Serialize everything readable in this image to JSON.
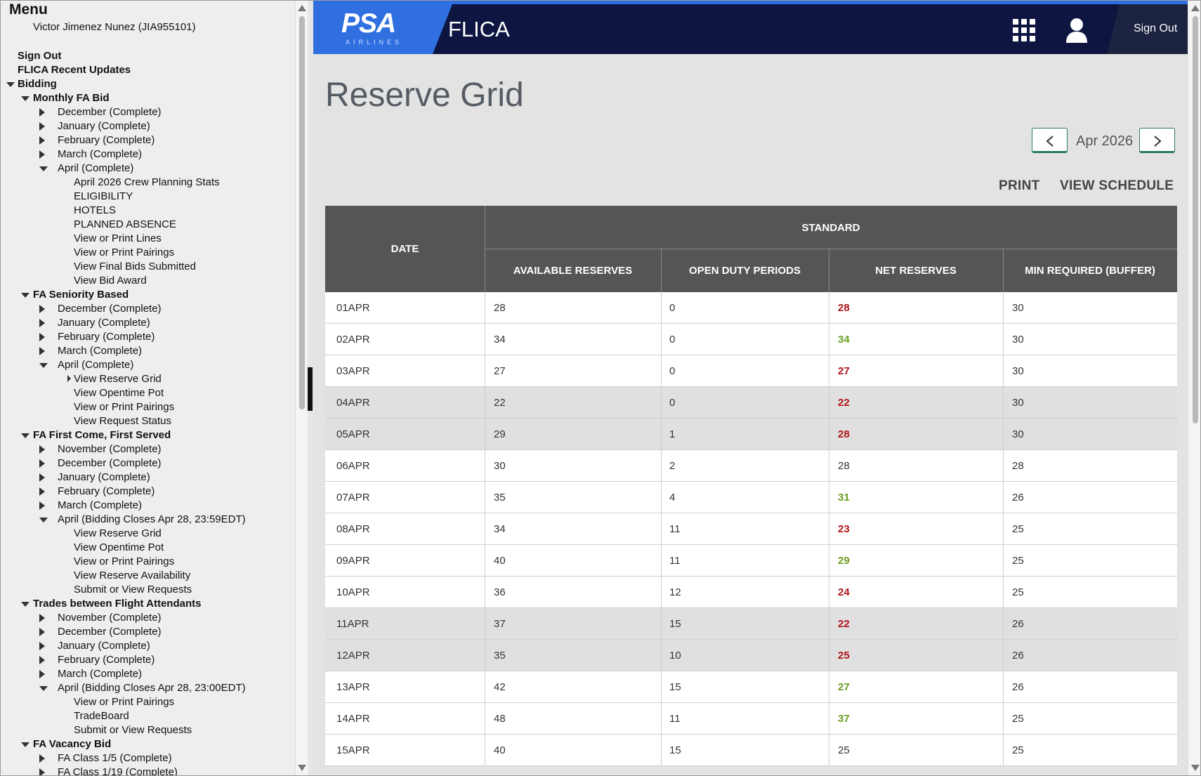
{
  "menu": {
    "title": "Menu",
    "user": "Victor Jimenez Nunez (JIA955101)",
    "items": [
      {
        "label": "Sign Out",
        "level": 0,
        "bold": true,
        "arrow": "none"
      },
      {
        "label": "FLICA Recent Updates",
        "level": 0,
        "bold": true,
        "arrow": "none"
      },
      {
        "label": "Bidding",
        "level": 0,
        "bold": true,
        "arrow": "down"
      },
      {
        "label": "Monthly FA Bid",
        "level": 1,
        "bold": true,
        "arrow": "down"
      },
      {
        "label": "December (Complete)",
        "level": 2,
        "bold": false,
        "arrow": "right"
      },
      {
        "label": "January (Complete)",
        "level": 2,
        "bold": false,
        "arrow": "right"
      },
      {
        "label": "February (Complete)",
        "level": 2,
        "bold": false,
        "arrow": "right"
      },
      {
        "label": "March (Complete)",
        "level": 2,
        "bold": false,
        "arrow": "right"
      },
      {
        "label": "April (Complete)",
        "level": 2,
        "bold": false,
        "arrow": "down"
      },
      {
        "label": "April 2026 Crew Planning Stats",
        "level": 3,
        "bold": false,
        "arrow": "none"
      },
      {
        "label": "ELIGIBILITY",
        "level": 3,
        "bold": false,
        "arrow": "none"
      },
      {
        "label": "HOTELS",
        "level": 3,
        "bold": false,
        "arrow": "none"
      },
      {
        "label": "PLANNED ABSENCE",
        "level": 3,
        "bold": false,
        "arrow": "none"
      },
      {
        "label": "View or Print Lines",
        "level": 3,
        "bold": false,
        "arrow": "none"
      },
      {
        "label": "View or Print Pairings",
        "level": 3,
        "bold": false,
        "arrow": "none"
      },
      {
        "label": "View Final Bids Submitted",
        "level": 3,
        "bold": false,
        "arrow": "none"
      },
      {
        "label": "View Bid Award",
        "level": 3,
        "bold": false,
        "arrow": "none"
      },
      {
        "label": "FA Seniority Based",
        "level": 1,
        "bold": true,
        "arrow": "down"
      },
      {
        "label": "December (Complete)",
        "level": 2,
        "bold": false,
        "arrow": "right"
      },
      {
        "label": "January (Complete)",
        "level": 2,
        "bold": false,
        "arrow": "right"
      },
      {
        "label": "February (Complete)",
        "level": 2,
        "bold": false,
        "arrow": "right"
      },
      {
        "label": "March (Complete)",
        "level": 2,
        "bold": false,
        "arrow": "right"
      },
      {
        "label": "April (Complete)",
        "level": 2,
        "bold": false,
        "arrow": "down"
      },
      {
        "label": "View Reserve Grid",
        "level": 3,
        "bold": false,
        "arrow": "small"
      },
      {
        "label": "View Opentime Pot",
        "level": 3,
        "bold": false,
        "arrow": "none"
      },
      {
        "label": "View or Print Pairings",
        "level": 3,
        "bold": false,
        "arrow": "none"
      },
      {
        "label": "View Request Status",
        "level": 3,
        "bold": false,
        "arrow": "none"
      },
      {
        "label": "FA First Come, First Served",
        "level": 1,
        "bold": true,
        "arrow": "down"
      },
      {
        "label": "November (Complete)",
        "level": 2,
        "bold": false,
        "arrow": "right"
      },
      {
        "label": "December (Complete)",
        "level": 2,
        "bold": false,
        "arrow": "right"
      },
      {
        "label": "January (Complete)",
        "level": 2,
        "bold": false,
        "arrow": "right"
      },
      {
        "label": "February (Complete)",
        "level": 2,
        "bold": false,
        "arrow": "right"
      },
      {
        "label": "March (Complete)",
        "level": 2,
        "bold": false,
        "arrow": "right"
      },
      {
        "label": "April (Bidding Closes Apr 28, 23:59EDT)",
        "level": 2,
        "bold": false,
        "arrow": "down"
      },
      {
        "label": "View Reserve Grid",
        "level": 3,
        "bold": false,
        "arrow": "none"
      },
      {
        "label": "View Opentime Pot",
        "level": 3,
        "bold": false,
        "arrow": "none"
      },
      {
        "label": "View or Print Pairings",
        "level": 3,
        "bold": false,
        "arrow": "none"
      },
      {
        "label": "View Reserve Availability",
        "level": 3,
        "bold": false,
        "arrow": "none"
      },
      {
        "label": "Submit or View Requests",
        "level": 3,
        "bold": false,
        "arrow": "none"
      },
      {
        "label": "Trades between Flight Attendants",
        "level": 1,
        "bold": true,
        "arrow": "down"
      },
      {
        "label": "November (Complete)",
        "level": 2,
        "bold": false,
        "arrow": "right"
      },
      {
        "label": "December (Complete)",
        "level": 2,
        "bold": false,
        "arrow": "right"
      },
      {
        "label": "January (Complete)",
        "level": 2,
        "bold": false,
        "arrow": "right"
      },
      {
        "label": "February (Complete)",
        "level": 2,
        "bold": false,
        "arrow": "right"
      },
      {
        "label": "March (Complete)",
        "level": 2,
        "bold": false,
        "arrow": "right"
      },
      {
        "label": "April (Bidding Closes Apr 28, 23:00EDT)",
        "level": 2,
        "bold": false,
        "arrow": "down"
      },
      {
        "label": "View or Print Pairings",
        "level": 3,
        "bold": false,
        "arrow": "none"
      },
      {
        "label": "TradeBoard",
        "level": 3,
        "bold": false,
        "arrow": "none"
      },
      {
        "label": "Submit or View Requests",
        "level": 3,
        "bold": false,
        "arrow": "none"
      },
      {
        "label": "FA Vacancy Bid",
        "level": 1,
        "bold": true,
        "arrow": "down"
      },
      {
        "label": "FA Class 1/5 (Complete)",
        "level": 2,
        "bold": false,
        "arrow": "right"
      },
      {
        "label": "FA Class 1/19 (Complete)",
        "level": 2,
        "bold": false,
        "arrow": "right"
      }
    ]
  },
  "header": {
    "logo_text": "PSA",
    "logo_sub": "AIRLINES",
    "app_title": "FLICA",
    "sign_out": "Sign Out",
    "apps_icon": "grid-icon",
    "user_icon": "user-icon"
  },
  "page": {
    "title": "Reserve Grid",
    "month": "Apr 2026",
    "print_label": "PRINT",
    "schedule_label": "VIEW SCHEDULE"
  },
  "colors": {
    "red": "#b01419",
    "green": "#6a9e1f",
    "header_bg": "#0d1540",
    "accent": "#2f6fe0"
  },
  "table": {
    "group_header": "STANDARD",
    "columns": [
      "DATE",
      "AVAILABLE RESERVES",
      "OPEN DUTY PERIODS",
      "NET RESERVES",
      "MIN REQUIRED (BUFFER)"
    ],
    "rows": [
      {
        "date": "01APR",
        "available": "28",
        "open": "0",
        "net": "28",
        "net_status": "red",
        "min": "30",
        "shade": "white"
      },
      {
        "date": "02APR",
        "available": "34",
        "open": "0",
        "net": "34",
        "net_status": "green",
        "min": "30",
        "shade": "white"
      },
      {
        "date": "03APR",
        "available": "27",
        "open": "0",
        "net": "27",
        "net_status": "red",
        "min": "30",
        "shade": "white"
      },
      {
        "date": "04APR",
        "available": "22",
        "open": "0",
        "net": "22",
        "net_status": "red",
        "min": "30",
        "shade": "grey"
      },
      {
        "date": "05APR",
        "available": "29",
        "open": "1",
        "net": "28",
        "net_status": "red",
        "min": "30",
        "shade": "grey"
      },
      {
        "date": "06APR",
        "available": "30",
        "open": "2",
        "net": "28",
        "net_status": "plain",
        "min": "28",
        "shade": "white"
      },
      {
        "date": "07APR",
        "available": "35",
        "open": "4",
        "net": "31",
        "net_status": "green",
        "min": "26",
        "shade": "white"
      },
      {
        "date": "08APR",
        "available": "34",
        "open": "11",
        "net": "23",
        "net_status": "red",
        "min": "25",
        "shade": "white"
      },
      {
        "date": "09APR",
        "available": "40",
        "open": "11",
        "net": "29",
        "net_status": "green",
        "min": "25",
        "shade": "white"
      },
      {
        "date": "10APR",
        "available": "36",
        "open": "12",
        "net": "24",
        "net_status": "red",
        "min": "25",
        "shade": "white"
      },
      {
        "date": "11APR",
        "available": "37",
        "open": "15",
        "net": "22",
        "net_status": "red",
        "min": "26",
        "shade": "grey"
      },
      {
        "date": "12APR",
        "available": "35",
        "open": "10",
        "net": "25",
        "net_status": "red",
        "min": "26",
        "shade": "grey"
      },
      {
        "date": "13APR",
        "available": "42",
        "open": "15",
        "net": "27",
        "net_status": "green",
        "min": "26",
        "shade": "white"
      },
      {
        "date": "14APR",
        "available": "48",
        "open": "11",
        "net": "37",
        "net_status": "green",
        "min": "25",
        "shade": "white"
      },
      {
        "date": "15APR",
        "available": "40",
        "open": "15",
        "net": "25",
        "net_status": "plain",
        "min": "25",
        "shade": "white"
      }
    ]
  }
}
